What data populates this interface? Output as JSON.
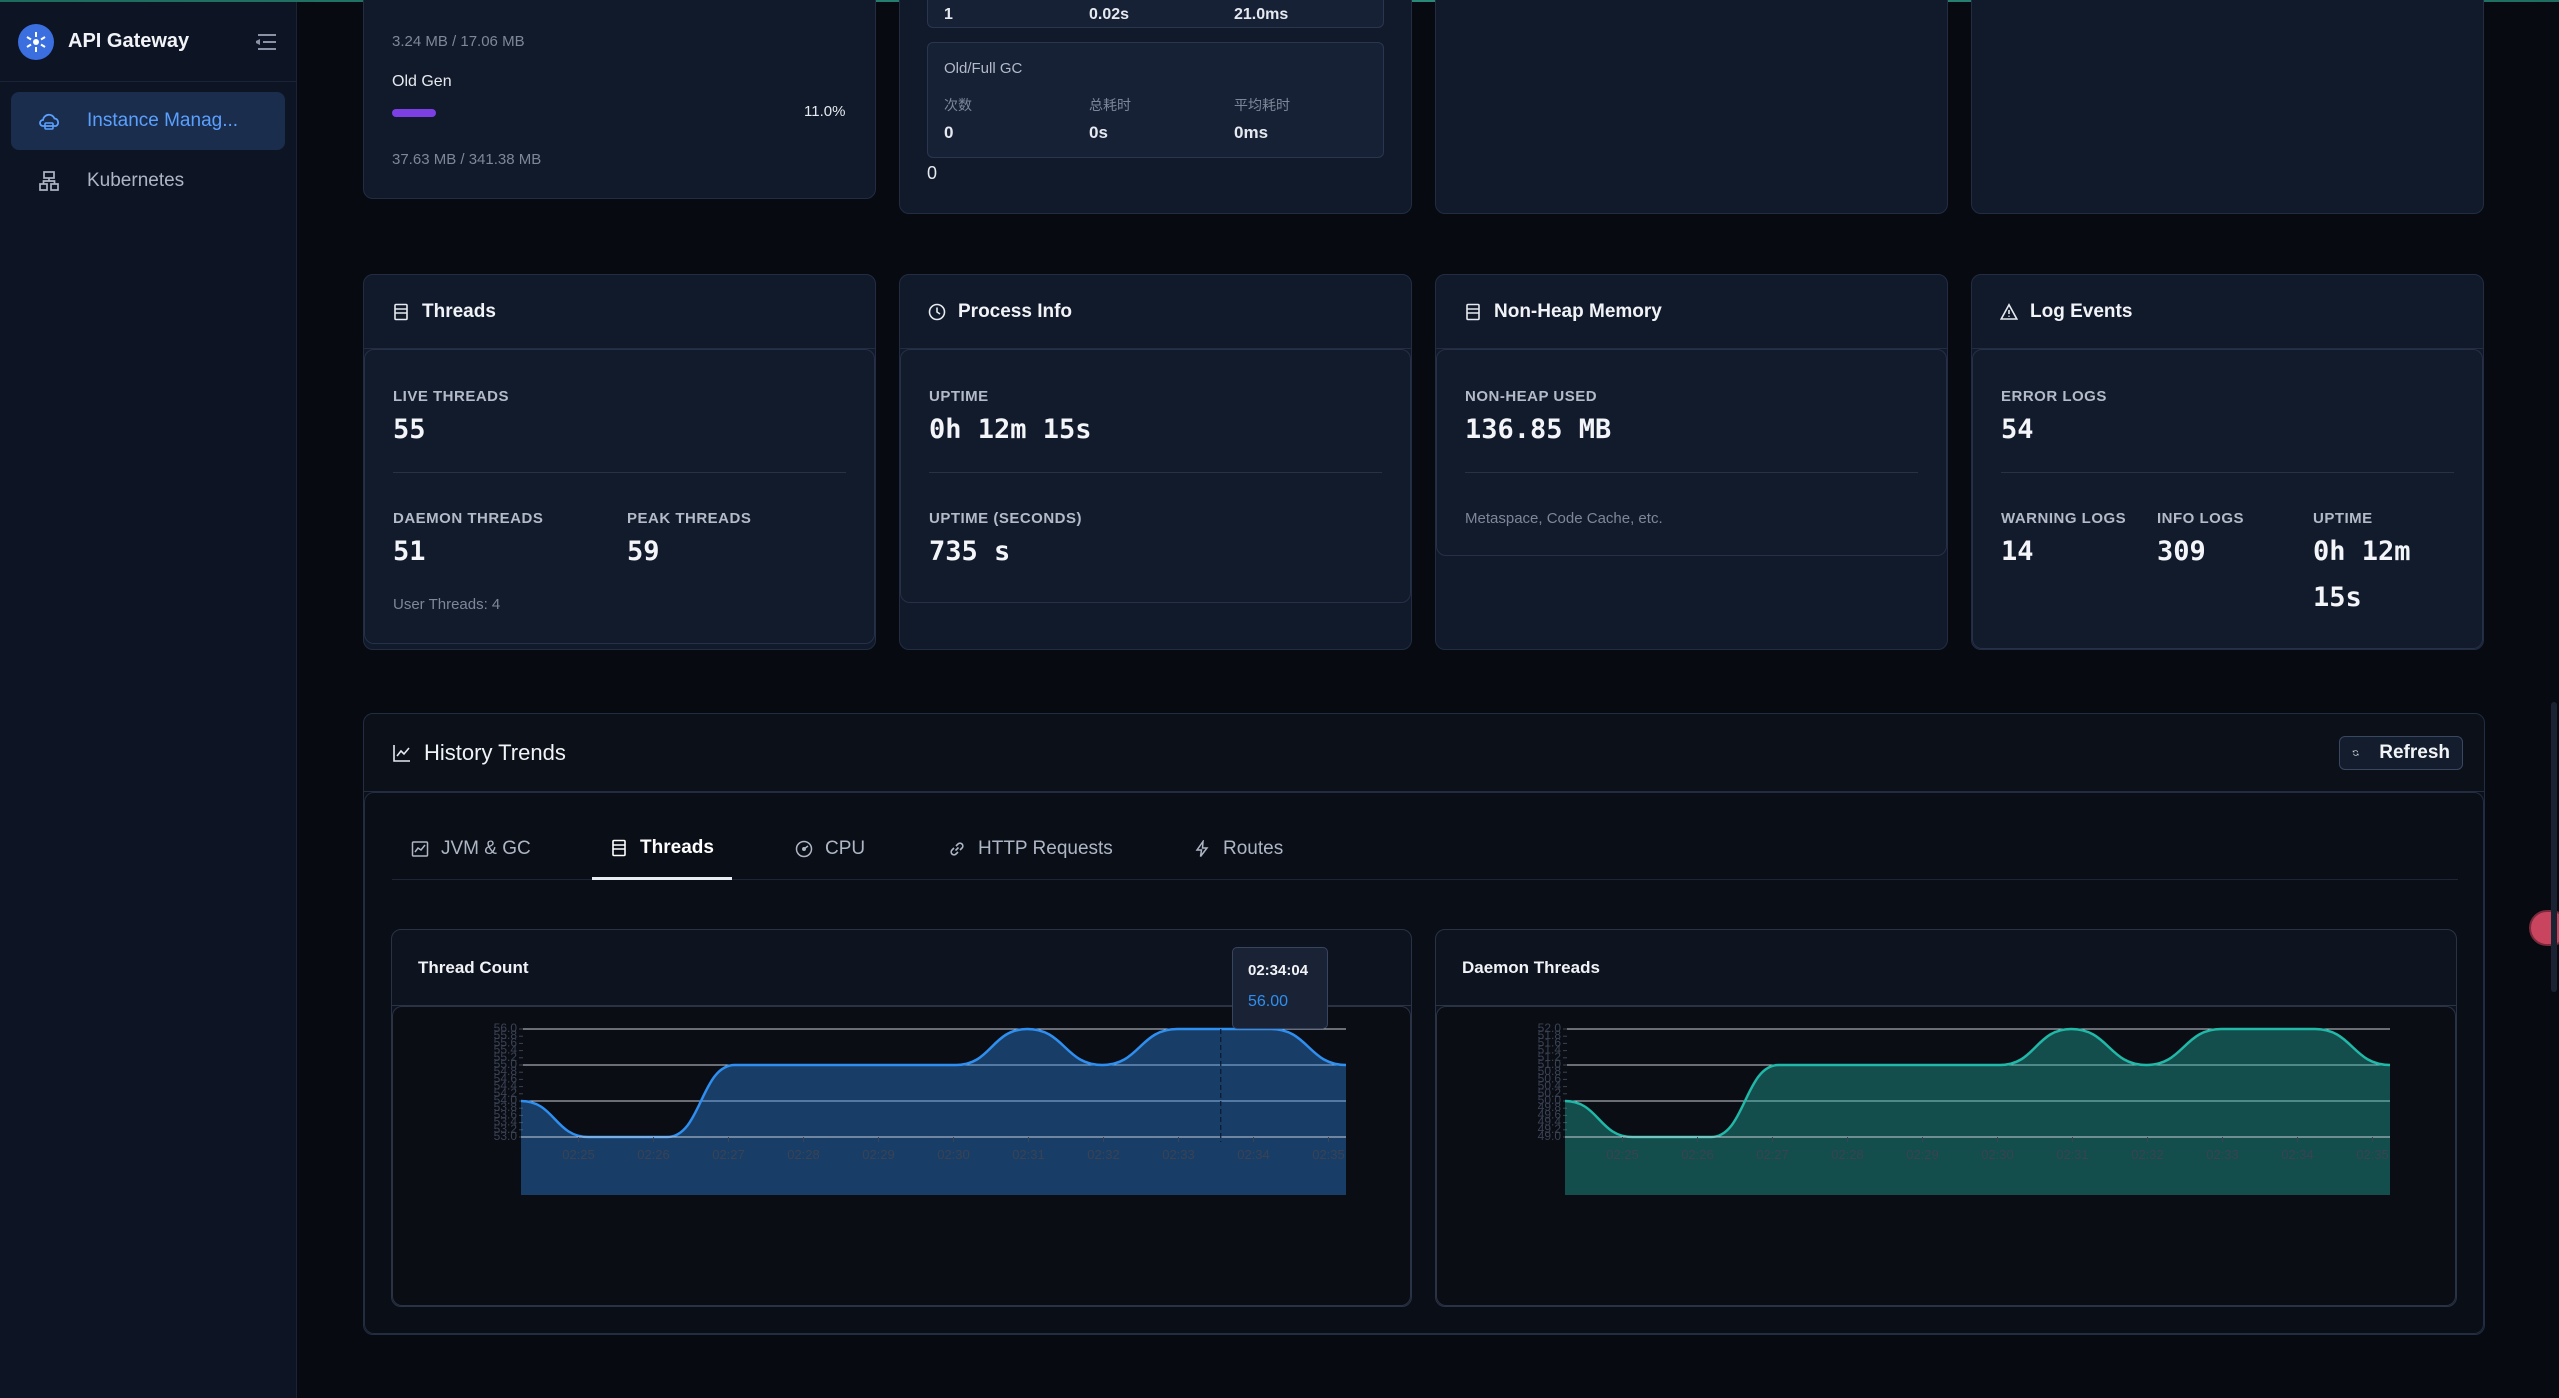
{
  "app": {
    "title": "API Gateway"
  },
  "sidebar": {
    "items": [
      {
        "label": "Instance Manag...",
        "icon": "cloud-server-icon",
        "active": true
      },
      {
        "label": "Kubernetes",
        "icon": "cluster-icon",
        "active": false
      }
    ]
  },
  "memory_card": {
    "young_sizes": "3.24 MB / 17.06 MB",
    "old_gen_label": "Old Gen",
    "old_gen_percent": "11.0%",
    "old_gen_fraction": 0.11,
    "old_gen_sizes": "37.63 MB / 341.38 MB"
  },
  "gc_card": {
    "young_row": {
      "count": "1",
      "total": "0.02s",
      "avg": "21.0ms"
    },
    "old_title": "Old/Full GC",
    "col_count": "次数",
    "col_total": "总耗时",
    "col_avg": "平均耗时",
    "old_row": {
      "count": "0",
      "total": "0s",
      "avg": "0ms"
    },
    "footer_value": "0"
  },
  "threads_card": {
    "title": "Threads",
    "live_label": "LIVE THREADS",
    "live_value": "55",
    "daemon_label": "DAEMON THREADS",
    "daemon_value": "51",
    "peak_label": "PEAK THREADS",
    "peak_value": "59",
    "user_threads": "User Threads: 4"
  },
  "process_card": {
    "title": "Process Info",
    "uptime_label": "UPTIME",
    "uptime_value": "0h 12m 15s",
    "uptime_sec_label": "UPTIME (SECONDS)",
    "uptime_sec_value": "735 s"
  },
  "nonheap_card": {
    "title": "Non-Heap Memory",
    "used_label": "NON-HEAP USED",
    "used_value": "136.85 MB",
    "note": "Metaspace, Code Cache, etc."
  },
  "log_card": {
    "title": "Log Events",
    "error_label": "ERROR LOGS",
    "error_value": "54",
    "warning_label": "WARNING LOGS",
    "warning_value": "14",
    "info_label": "INFO LOGS",
    "info_value": "309",
    "uptime_label": "UPTIME",
    "uptime_line1": "0h 12m",
    "uptime_line2": "15s"
  },
  "history": {
    "title": "History Trends",
    "refresh_label": "Refresh",
    "tabs": [
      {
        "label": "JVM & GC",
        "icon": "line-chart-icon"
      },
      {
        "label": "Threads",
        "icon": "threads-icon",
        "active": true
      },
      {
        "label": "CPU",
        "icon": "dashboard-icon"
      },
      {
        "label": "HTTP Requests",
        "icon": "link-icon"
      },
      {
        "label": "Routes",
        "icon": "bolt-icon"
      }
    ]
  },
  "tooltip": {
    "time": "02:34:04",
    "value": "56.00"
  },
  "chart_data": [
    {
      "type": "area",
      "title": "Thread Count",
      "color": "#2f8ff0",
      "x": [
        "02:25",
        "02:26",
        "02:27",
        "02:28",
        "02:29",
        "02:30",
        "02:31",
        "02:32",
        "02:33",
        "02:34",
        "02:35"
      ],
      "y_ticks": [
        "53.0",
        "53.2",
        "53.4",
        "53.6",
        "53.8",
        "54.0",
        "54.2",
        "54.4",
        "54.6",
        "54.8",
        "55.0",
        "55.2",
        "55.4",
        "55.6",
        "55.8",
        "56.0"
      ],
      "ylim": [
        53,
        56
      ],
      "points": [
        [
          0,
          54
        ],
        [
          0.9,
          53
        ],
        [
          1.95,
          53
        ],
        [
          2.85,
          55
        ],
        [
          5.8,
          55
        ],
        [
          6.75,
          56
        ],
        [
          7.75,
          55
        ],
        [
          8.75,
          56
        ],
        [
          10,
          56
        ],
        [
          11,
          55
        ]
      ]
    },
    {
      "type": "area",
      "title": "Daemon Threads",
      "color": "#22b8a8",
      "x": [
        "02:25",
        "02:26",
        "02:27",
        "02:28",
        "02:29",
        "02:30",
        "02:31",
        "02:32",
        "02:33",
        "02:34",
        "02:35"
      ],
      "y_ticks": [
        "49.0",
        "49.2",
        "49.4",
        "49.6",
        "49.8",
        "50.0",
        "50.2",
        "50.4",
        "50.6",
        "50.8",
        "51.0",
        "51.2",
        "51.4",
        "51.6",
        "51.8",
        "52.0"
      ],
      "ylim": [
        49,
        52
      ],
      "points": [
        [
          0,
          50
        ],
        [
          0.9,
          49
        ],
        [
          1.95,
          49
        ],
        [
          2.85,
          51
        ],
        [
          5.8,
          51
        ],
        [
          6.75,
          52
        ],
        [
          7.75,
          51
        ],
        [
          8.75,
          52
        ],
        [
          10,
          52
        ],
        [
          11,
          51
        ]
      ]
    }
  ]
}
